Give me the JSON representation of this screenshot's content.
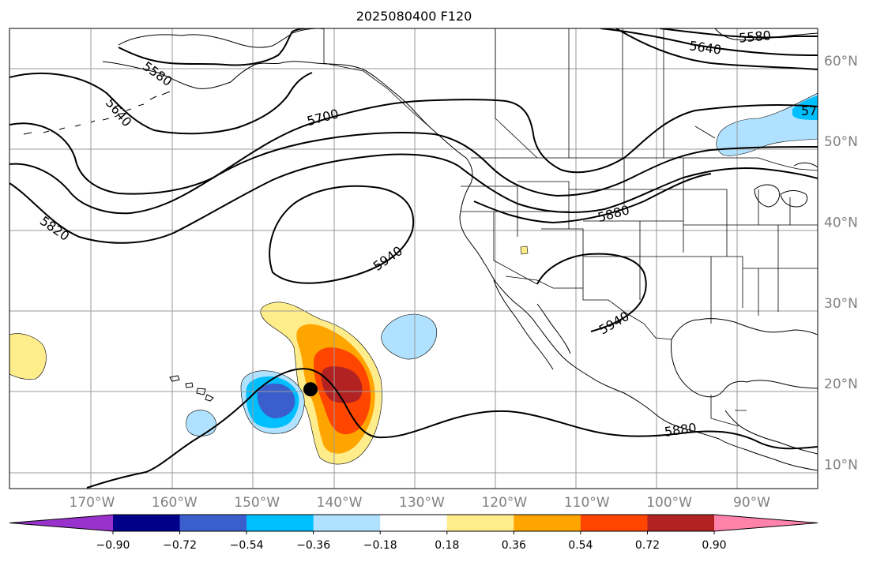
{
  "figure": {
    "title": "2025080400 F120"
  },
  "map": {
    "projection": "PlateCarree",
    "lon_range": [
      -180,
      -82
    ],
    "lat_range": [
      7,
      64
    ],
    "lat_ticks": [
      {
        "value": 60,
        "label": "60°N"
      },
      {
        "value": 50,
        "label": "50°N"
      },
      {
        "value": 40,
        "label": "40°N"
      },
      {
        "value": 30,
        "label": "30°N"
      },
      {
        "value": 20,
        "label": "20°N"
      },
      {
        "value": 10,
        "label": "10°N"
      }
    ],
    "lon_ticks": [
      {
        "value": -170,
        "label": "170°W"
      },
      {
        "value": -160,
        "label": "160°W"
      },
      {
        "value": -150,
        "label": "150°W"
      },
      {
        "value": -140,
        "label": "140°W"
      },
      {
        "value": -130,
        "label": "130°W"
      },
      {
        "value": -120,
        "label": "120°W"
      },
      {
        "value": -110,
        "label": "110°W"
      },
      {
        "value": -100,
        "label": "100°W"
      },
      {
        "value": -90,
        "label": "90°W"
      }
    ],
    "grid": true,
    "contour_labels": [
      "5580",
      "5640",
      "5580",
      "5640",
      "5700",
      "5820",
      "5940",
      "5880",
      "5940",
      "5880",
      "57"
    ],
    "storm_marker": {
      "lon": -143.5,
      "lat": 19.3
    }
  },
  "colorbar": {
    "orientation": "horizontal",
    "extend": "both",
    "colors": [
      "#9932CC",
      "#00008B",
      "#3A5FCD",
      "#00BFFF",
      "#B0E2FF",
      "#FFFFFF",
      "#FFEC8B",
      "#FFA500",
      "#FF4500",
      "#B22222",
      "#FF82AB"
    ],
    "levels": [
      "−0.90",
      "−0.72",
      "−0.54",
      "−0.36",
      "−0.18",
      "0.18",
      "0.36",
      "0.54",
      "0.72",
      "0.90"
    ]
  }
}
